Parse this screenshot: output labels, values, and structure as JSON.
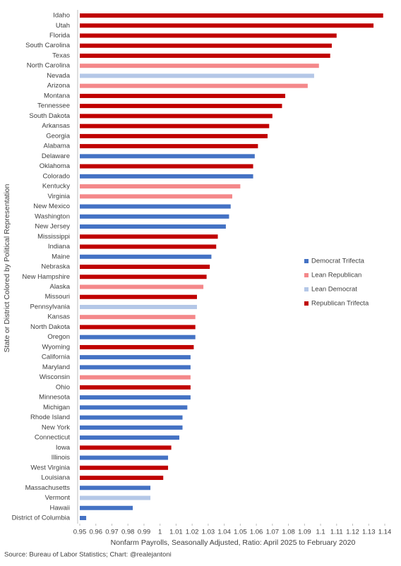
{
  "chart_data": {
    "type": "hbar",
    "x_label": "Nonfarm Payrolls, Seasonally Adjusted, Ratio: April 2025 to February 2020",
    "y_label": "State or District Colored by Political Representation",
    "source": "Source: Bureau of Labor Statistics; Chart: @realejantoni",
    "categories": [
      "Idaho",
      "Utah",
      "Florida",
      "South Carolina",
      "Texas",
      "North Carolina",
      "Nevada",
      "Arizona",
      "Montana",
      "Tennessee",
      "South Dakota",
      "Arkansas",
      "Georgia",
      "Alabama",
      "Delaware",
      "Oklahoma",
      "Colorado",
      "Kentucky",
      "Virginia",
      "New Mexico",
      "Washington",
      "New Jersey",
      "Mississippi",
      "Indiana",
      "Maine",
      "Nebraska",
      "New Hampshire",
      "Alaska",
      "Missouri",
      "Pennsylvania",
      "Kansas",
      "North Dakota",
      "Oregon",
      "Wyoming",
      "California",
      "Maryland",
      "Wisconsin",
      "Ohio",
      "Minnesota",
      "Michigan",
      "Rhode Island",
      "New York",
      "Connecticut",
      "Iowa",
      "Illinois",
      "West Virginia",
      "Louisiana",
      "Massachusetts",
      "Vermont",
      "Hawaii",
      "District of Columbia"
    ],
    "series": [
      {
        "name": "Democrat Trifecta",
        "color": "#4472c4",
        "values": [
          null,
          null,
          null,
          null,
          null,
          null,
          null,
          null,
          null,
          null,
          null,
          null,
          null,
          null,
          1.059,
          null,
          1.058,
          null,
          null,
          1.044,
          1.043,
          1.041,
          null,
          null,
          1.032,
          null,
          null,
          null,
          null,
          null,
          null,
          null,
          1.022,
          null,
          1.019,
          1.019,
          null,
          null,
          1.019,
          1.017,
          1.014,
          1.014,
          1.012,
          null,
          1.005,
          null,
          null,
          0.994,
          null,
          0.983,
          0.954
        ]
      },
      {
        "name": "Lean Republican",
        "color": "#f4888a",
        "values": [
          null,
          null,
          null,
          null,
          null,
          1.099,
          null,
          1.092,
          null,
          null,
          null,
          null,
          null,
          null,
          null,
          null,
          null,
          1.05,
          1.045,
          null,
          null,
          null,
          null,
          null,
          null,
          null,
          null,
          1.027,
          null,
          null,
          1.022,
          null,
          null,
          null,
          null,
          null,
          1.019,
          null,
          null,
          null,
          null,
          null,
          null,
          null,
          null,
          null,
          null,
          null,
          null,
          null,
          null
        ]
      },
      {
        "name": "Lean Democrat",
        "color": "#b4c7e7",
        "values": [
          null,
          null,
          null,
          null,
          null,
          null,
          1.096,
          null,
          null,
          null,
          null,
          null,
          null,
          null,
          null,
          null,
          null,
          null,
          null,
          null,
          null,
          null,
          null,
          null,
          null,
          null,
          null,
          null,
          null,
          1.023,
          null,
          null,
          null,
          null,
          null,
          null,
          null,
          null,
          null,
          null,
          null,
          null,
          null,
          null,
          null,
          null,
          null,
          null,
          0.994,
          null,
          null
        ]
      },
      {
        "name": "Republican Trifecta",
        "color": "#c00000",
        "values": [
          1.139,
          1.133,
          1.11,
          1.107,
          1.106,
          null,
          null,
          null,
          1.078,
          1.076,
          1.07,
          1.068,
          1.067,
          1.061,
          null,
          1.058,
          null,
          null,
          null,
          null,
          null,
          null,
          1.036,
          1.035,
          null,
          1.031,
          1.029,
          null,
          1.023,
          null,
          null,
          1.022,
          null,
          1.021,
          null,
          null,
          null,
          1.019,
          null,
          null,
          null,
          null,
          null,
          1.007,
          null,
          1.005,
          1.002,
          null,
          null,
          null,
          null
        ]
      }
    ],
    "xlim": [
      0.95,
      1.14
    ],
    "xticks": [
      0.95,
      0.96,
      0.97,
      0.98,
      0.99,
      1,
      1.01,
      1.02,
      1.03,
      1.04,
      1.05,
      1.06,
      1.07,
      1.08,
      1.09,
      1.1,
      1.11,
      1.12,
      1.13,
      1.14
    ]
  }
}
